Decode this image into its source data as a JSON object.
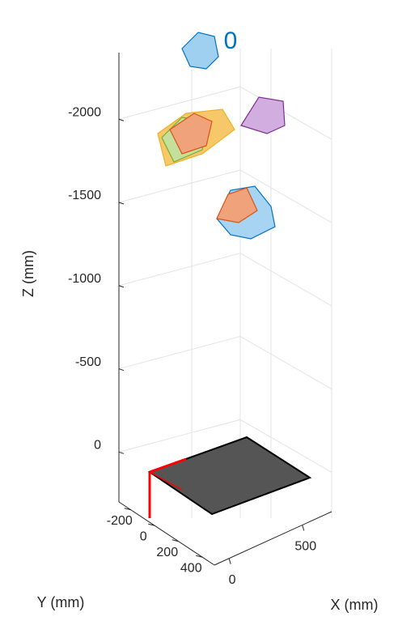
{
  "chart_data": {
    "type": "3d-axes",
    "xlabel": "X (mm)",
    "ylabel": "Y (mm)",
    "zlabel": "Z (mm)",
    "annotation": "0",
    "xlim": [
      -100,
      700
    ],
    "xticks": [
      0,
      500
    ],
    "ylim": [
      -300,
      500
    ],
    "yticks": [
      -200,
      0,
      200,
      400
    ],
    "zlim": [
      -2400,
      300
    ],
    "zticks": [
      -2000,
      -1500,
      -1000,
      -500,
      0
    ],
    "grid": true
  }
}
